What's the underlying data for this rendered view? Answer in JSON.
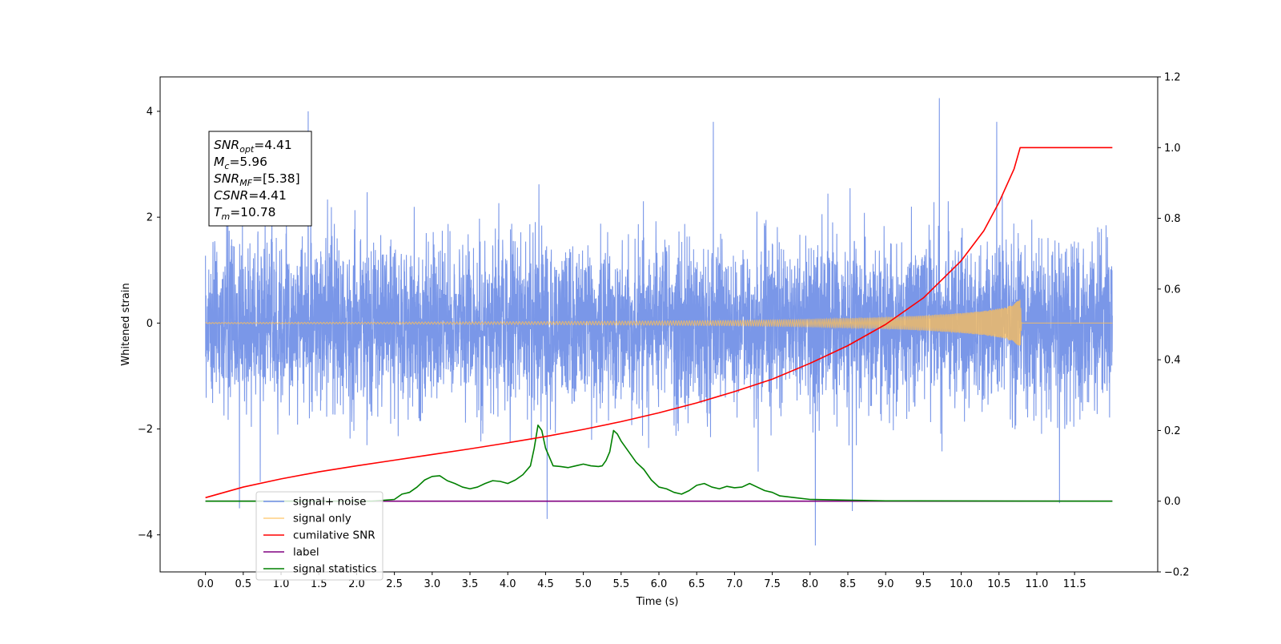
{
  "chart_data": {
    "type": "line",
    "xlabel": "Time (s)",
    "ylabel": "Whitened strain",
    "xlim": [
      -0.6,
      12.6
    ],
    "ylim": [
      -4.7,
      4.65
    ],
    "ylim_right": [
      -0.2,
      1.2
    ],
    "x_ticks": [
      0.0,
      0.5,
      1.0,
      1.5,
      2.0,
      2.5,
      3.0,
      3.5,
      4.0,
      4.5,
      5.0,
      5.5,
      6.0,
      6.5,
      7.0,
      7.5,
      8.0,
      8.5,
      9.0,
      9.5,
      10.0,
      10.5,
      11.0,
      11.5
    ],
    "x_tick_labels": [
      "0.0",
      "0.5",
      "1.0",
      "1.5",
      "2.0",
      "2.5",
      "3.0",
      "3.5",
      "4.0",
      "4.5",
      "5.0",
      "5.5",
      "6.0",
      "6.5",
      "7.0",
      "7.5",
      "8.0",
      "8.5",
      "9.0",
      "9.5",
      "10.0",
      "10.5",
      "11.0",
      "11.5"
    ],
    "y_ticks": [
      -4,
      -2,
      0,
      2,
      4
    ],
    "y_tick_labels": [
      "−4",
      "−2",
      "0",
      "2",
      "4"
    ],
    "y_ticks_right": [
      -0.2,
      0.0,
      0.2,
      0.4,
      0.6,
      0.8,
      1.0,
      1.2
    ],
    "y_tick_labels_right": [
      "−0.2",
      "0.0",
      "0.2",
      "0.4",
      "0.6",
      "0.8",
      "1.0",
      "1.2"
    ],
    "grid": false,
    "legend_position": "lower-left",
    "series": [
      {
        "name": "signal+ noise",
        "axis": "left",
        "color": "#6f8ee6",
        "x_range": [
          0.0,
          12.0
        ],
        "approx_std": 1.0,
        "notable_peaks": [
          {
            "x": 1.36,
            "y": 4.0
          },
          {
            "x": 9.71,
            "y": 4.25
          },
          {
            "x": 6.72,
            "y": 3.8
          },
          {
            "x": 10.47,
            "y": 3.8
          },
          {
            "x": 8.07,
            "y": -4.2
          },
          {
            "x": 4.52,
            "y": -3.7
          },
          {
            "x": 8.56,
            "y": -3.55
          },
          {
            "x": 0.45,
            "y": -3.5
          },
          {
            "x": 11.3,
            "y": -3.4
          }
        ]
      },
      {
        "name": "signal only",
        "axis": "left",
        "color": "#ffbf57",
        "x_range": [
          0.0,
          12.0
        ],
        "envelope_x": [
          0.0,
          2.0,
          4.0,
          6.0,
          7.0,
          8.0,
          8.5,
          9.0,
          9.5,
          10.0,
          10.3,
          10.6,
          10.7,
          10.78,
          10.8,
          12.0
        ],
        "envelope_y": [
          0.01,
          0.015,
          0.025,
          0.04,
          0.05,
          0.07,
          0.09,
          0.11,
          0.14,
          0.19,
          0.23,
          0.3,
          0.38,
          0.5,
          0.0,
          0.0
        ]
      },
      {
        "name": "cumilative SNR",
        "axis": "right",
        "color": "#ff0000",
        "x": [
          0.0,
          0.25,
          0.5,
          1.0,
          1.5,
          2.0,
          2.5,
          3.0,
          3.5,
          4.0,
          4.5,
          5.0,
          5.5,
          6.0,
          6.5,
          7.0,
          7.5,
          8.0,
          8.5,
          9.0,
          9.5,
          10.0,
          10.3,
          10.5,
          10.7,
          10.78,
          12.0
        ],
        "y": [
          0.01,
          0.025,
          0.04,
          0.063,
          0.083,
          0.1,
          0.116,
          0.132,
          0.148,
          0.165,
          0.183,
          0.203,
          0.225,
          0.25,
          0.278,
          0.31,
          0.345,
          0.39,
          0.44,
          0.5,
          0.575,
          0.68,
          0.765,
          0.845,
          0.94,
          1.0,
          1.0
        ]
      },
      {
        "name": "label",
        "axis": "right",
        "color": "#800080",
        "x": [
          0.0,
          12.0
        ],
        "y": [
          0.0,
          0.0
        ]
      },
      {
        "name": "signal statistics",
        "axis": "right",
        "color": "#008000",
        "x": [
          0.0,
          2.2,
          2.5,
          2.6,
          2.7,
          2.8,
          2.9,
          3.0,
          3.1,
          3.2,
          3.3,
          3.4,
          3.5,
          3.6,
          3.7,
          3.8,
          3.9,
          4.0,
          4.1,
          4.2,
          4.3,
          4.35,
          4.4,
          4.45,
          4.5,
          4.6,
          4.7,
          4.8,
          4.9,
          5.0,
          5.1,
          5.2,
          5.25,
          5.3,
          5.35,
          5.4,
          5.45,
          5.5,
          5.6,
          5.7,
          5.8,
          5.9,
          6.0,
          6.1,
          6.2,
          6.3,
          6.4,
          6.5,
          6.6,
          6.7,
          6.8,
          6.9,
          7.0,
          7.1,
          7.2,
          7.3,
          7.4,
          7.5,
          7.6,
          7.8,
          8.0,
          8.5,
          9.0,
          12.0
        ],
        "y": [
          0.0,
          0.0,
          0.005,
          0.02,
          0.025,
          0.04,
          0.06,
          0.07,
          0.072,
          0.058,
          0.05,
          0.04,
          0.035,
          0.04,
          0.05,
          0.058,
          0.056,
          0.05,
          0.06,
          0.075,
          0.1,
          0.15,
          0.215,
          0.2,
          0.15,
          0.1,
          0.098,
          0.095,
          0.1,
          0.105,
          0.1,
          0.098,
          0.1,
          0.115,
          0.14,
          0.2,
          0.19,
          0.17,
          0.14,
          0.11,
          0.09,
          0.06,
          0.04,
          0.035,
          0.025,
          0.02,
          0.03,
          0.045,
          0.05,
          0.04,
          0.035,
          0.042,
          0.038,
          0.04,
          0.05,
          0.04,
          0.03,
          0.025,
          0.015,
          0.01,
          0.005,
          0.003,
          0.001,
          0.0
        ]
      }
    ],
    "legend": {
      "entries": [
        {
          "label": "signal+ noise",
          "color": "#6f8ee6"
        },
        {
          "label": "signal only",
          "color": "#ffbf57"
        },
        {
          "label": "cumilative SNR",
          "color": "#ff0000"
        },
        {
          "label": "label",
          "color": "#800080"
        },
        {
          "label": "signal statistics",
          "color": "#008000"
        }
      ]
    },
    "annotation": {
      "lines": [
        {
          "sym": "SNR",
          "sub": "opt",
          "value": "=4.41"
        },
        {
          "sym": "M",
          "sub": "c",
          "value": "=5.96"
        },
        {
          "sym": "SNR",
          "sub": "MF",
          "value": "=[5.38]"
        },
        {
          "sym": "CSNR",
          "sub": "",
          "value": "=4.41"
        },
        {
          "sym": "T",
          "sub": "m",
          "value": "=10.78"
        }
      ]
    }
  }
}
